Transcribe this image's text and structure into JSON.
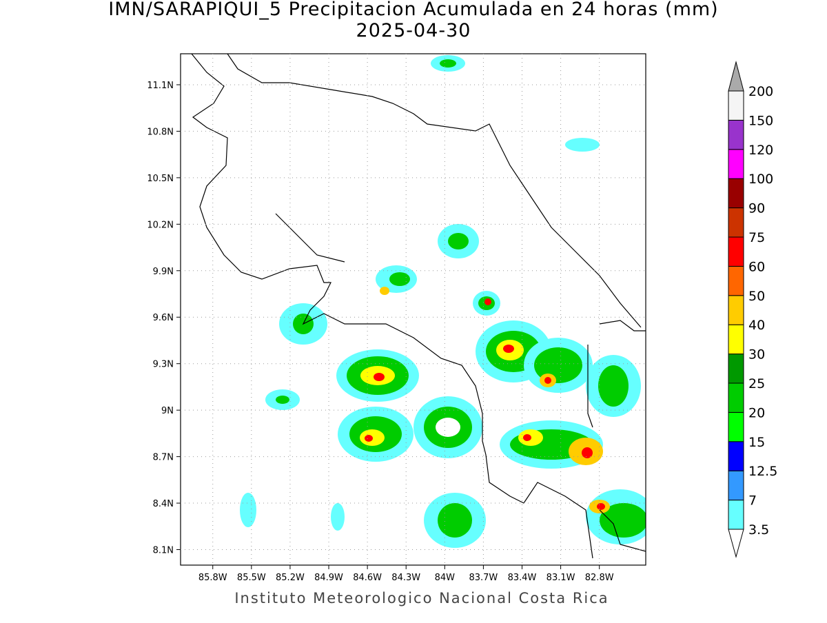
{
  "map": {
    "title": "IMN/SARAPIQUI_5 Precipitacion Acumulada en 24 horas (mm)",
    "subtitle": "2025-04-30",
    "footer": "Instituto Meteorologico Nacional Costa Rica",
    "lat_range": [
      8.0,
      11.3
    ],
    "lon_range": [
      -86.05,
      -82.44
    ],
    "lat_ticks": [
      {
        "value": 11.1,
        "label": "11.1N"
      },
      {
        "value": 10.8,
        "label": "10.8N"
      },
      {
        "value": 10.5,
        "label": "10.5N"
      },
      {
        "value": 10.2,
        "label": "10.2N"
      },
      {
        "value": 9.9,
        "label": "9.9N"
      },
      {
        "value": 9.6,
        "label": "9.6N"
      },
      {
        "value": 9.3,
        "label": "9.3N"
      },
      {
        "value": 9.0,
        "label": "9N"
      },
      {
        "value": 8.7,
        "label": "8.7N"
      },
      {
        "value": 8.4,
        "label": "8.4N"
      },
      {
        "value": 8.1,
        "label": "8.1N"
      }
    ],
    "lon_ticks": [
      {
        "value": -85.8,
        "label": "85.8W"
      },
      {
        "value": -85.5,
        "label": "85.5W"
      },
      {
        "value": -85.2,
        "label": "85.2W"
      },
      {
        "value": -84.9,
        "label": "84.9W"
      },
      {
        "value": -84.6,
        "label": "84.6W"
      },
      {
        "value": -84.3,
        "label": "84.3W"
      },
      {
        "value": -84.0,
        "label": "84W"
      },
      {
        "value": -83.7,
        "label": "83.7W"
      },
      {
        "value": -83.4,
        "label": "83.4W"
      },
      {
        "value": -83.1,
        "label": "83.1W"
      },
      {
        "value": -82.8,
        "label": "82.8W"
      }
    ],
    "grid": true,
    "colorbar": {
      "levels": [
        3.5,
        7,
        12.5,
        15,
        20,
        25,
        30,
        40,
        50,
        60,
        75,
        90,
        100,
        120,
        150,
        200
      ],
      "colors": [
        "#66ffff",
        "#3399ff",
        "#0000ff",
        "#00ff00",
        "#00cc00",
        "#009900",
        "#ffff00",
        "#ffcc00",
        "#ff6600",
        "#ff0000",
        "#cc3300",
        "#990000",
        "#ff00ff",
        "#9933cc",
        "#f5f5f5"
      ],
      "under_color": "#ffffff",
      "over_color": "#aaaaaa"
    }
  }
}
